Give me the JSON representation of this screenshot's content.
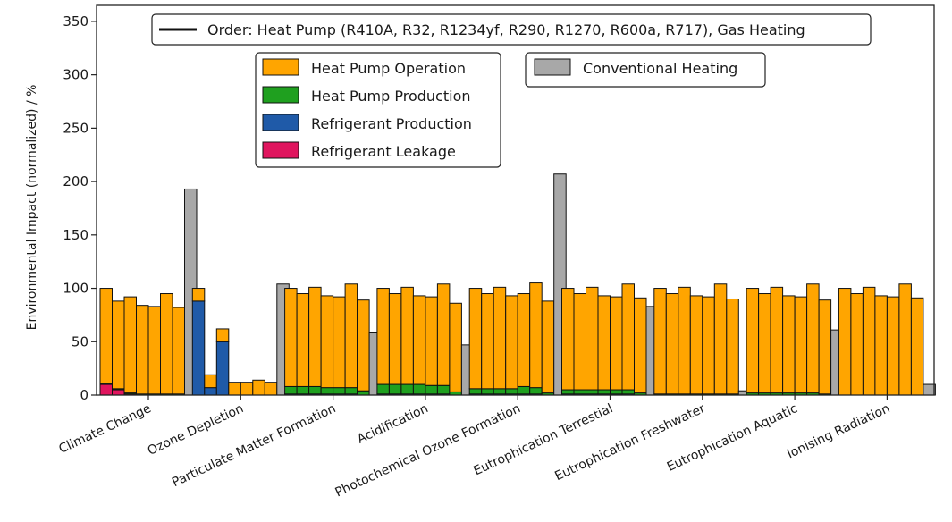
{
  "chart_data": {
    "type": "bar",
    "stacked": true,
    "ylabel": "Environmental Impact (normalized) / %",
    "ylim": [
      0,
      365
    ],
    "yticks": [
      0,
      50,
      100,
      150,
      200,
      250,
      300,
      350
    ],
    "order_note": "Order: Heat Pump (R410A, R32, R1234yf, R290, R1270, R600a, R717), Gas Heating",
    "legend_position": "top",
    "series_colors": {
      "Heat Pump Operation": "#ffa500",
      "Heat Pump Production": "#1fa01f",
      "Refrigerant Production": "#1f5aa8",
      "Refrigerant Leakage": "#e0155e",
      "Conventional Heating": "#a8a8a8"
    },
    "series_order": [
      "Refrigerant Leakage",
      "Refrigerant Production",
      "Heat Pump Production",
      "Heat Pump Operation"
    ],
    "legend": [
      {
        "name": "Heat Pump Operation",
        "color": "#ffa500"
      },
      {
        "name": "Heat Pump Production",
        "color": "#1fa01f"
      },
      {
        "name": "Refrigerant Production",
        "color": "#1f5aa8"
      },
      {
        "name": "Refrigerant Leakage",
        "color": "#e0155e"
      },
      {
        "name": "Conventional Heating",
        "color": "#a8a8a8"
      }
    ],
    "refrigerants": [
      "R410A",
      "R32",
      "R1234yf",
      "R290",
      "R1270",
      "R600a",
      "R717"
    ],
    "categories": [
      {
        "name": "Climate Change",
        "heat_pump_totals": [
          100,
          88,
          92,
          84,
          83,
          95,
          82
        ],
        "leakage": [
          10,
          5,
          1,
          0,
          0,
          0,
          0
        ],
        "refrigerant_production": [
          0,
          0,
          0,
          0,
          0,
          0,
          0
        ],
        "heat_pump_production": [
          1,
          1,
          1,
          1,
          1,
          1,
          1
        ],
        "gas_heating": 193
      },
      {
        "name": "Ozone Depletion",
        "heat_pump_totals": [
          100,
          19,
          62,
          12,
          12,
          14,
          12
        ],
        "leakage": [
          0,
          0,
          0,
          0,
          0,
          0,
          0
        ],
        "refrigerant_production": [
          88,
          7,
          50,
          0,
          0,
          0,
          0
        ],
        "heat_pump_production": [
          0,
          0,
          0,
          0,
          0,
          0,
          0
        ],
        "gas_heating": 104
      },
      {
        "name": "Particulate Matter Formation",
        "heat_pump_totals": [
          100,
          95,
          101,
          93,
          92,
          104,
          89
        ],
        "leakage": [
          0,
          0,
          0,
          0,
          0,
          0,
          0
        ],
        "refrigerant_production": [
          1,
          1,
          1,
          1,
          1,
          1,
          0
        ],
        "heat_pump_production": [
          7,
          7,
          7,
          6,
          6,
          6,
          4
        ],
        "gas_heating": 59
      },
      {
        "name": "Acidification",
        "heat_pump_totals": [
          100,
          95,
          101,
          93,
          92,
          104,
          86
        ],
        "leakage": [
          0,
          0,
          0,
          0,
          0,
          0,
          0
        ],
        "refrigerant_production": [
          1,
          1,
          1,
          1,
          1,
          1,
          0
        ],
        "heat_pump_production": [
          9,
          9,
          9,
          9,
          8,
          8,
          3
        ],
        "gas_heating": 47
      },
      {
        "name": "Photochemical Ozone Formation",
        "heat_pump_totals": [
          100,
          95,
          101,
          93,
          95,
          105,
          88
        ],
        "leakage": [
          0,
          0,
          0,
          0,
          0,
          0,
          0
        ],
        "refrigerant_production": [
          1,
          1,
          1,
          1,
          1,
          1,
          0
        ],
        "heat_pump_production": [
          5,
          5,
          5,
          5,
          7,
          6,
          2
        ],
        "gas_heating": 207
      },
      {
        "name": "Eutrophication Terrestial",
        "heat_pump_totals": [
          100,
          95,
          101,
          93,
          92,
          104,
          91
        ],
        "leakage": [
          0,
          0,
          0,
          0,
          0,
          0,
          0
        ],
        "refrigerant_production": [
          1,
          1,
          1,
          1,
          1,
          1,
          0
        ],
        "heat_pump_production": [
          4,
          4,
          4,
          4,
          4,
          4,
          2
        ],
        "gas_heating": 83
      },
      {
        "name": "Eutrophication Freshwater",
        "heat_pump_totals": [
          100,
          95,
          101,
          93,
          92,
          104,
          90
        ],
        "leakage": [
          0,
          0,
          0,
          0,
          0,
          0,
          0
        ],
        "refrigerant_production": [
          0,
          0,
          0,
          0,
          0,
          0,
          0
        ],
        "heat_pump_production": [
          1,
          1,
          1,
          1,
          1,
          1,
          1
        ],
        "gas_heating": 4
      },
      {
        "name": "Eutrophication Aquatic",
        "heat_pump_totals": [
          100,
          95,
          101,
          93,
          92,
          104,
          89
        ],
        "leakage": [
          0,
          0,
          0,
          0,
          0,
          0,
          0
        ],
        "refrigerant_production": [
          0,
          0,
          0,
          0,
          0,
          0,
          0
        ],
        "heat_pump_production": [
          2,
          2,
          2,
          2,
          2,
          2,
          1
        ],
        "gas_heating": 61
      },
      {
        "name": "Ionising Radiation",
        "heat_pump_totals": [
          100,
          95,
          101,
          93,
          92,
          104,
          91
        ],
        "leakage": [
          0,
          0,
          0,
          0,
          0,
          0,
          0
        ],
        "refrigerant_production": [
          0,
          0,
          0,
          0,
          0,
          0,
          0
        ],
        "heat_pump_production": [
          0,
          0,
          0,
          0,
          0,
          0,
          0
        ],
        "gas_heating": 10
      }
    ]
  }
}
